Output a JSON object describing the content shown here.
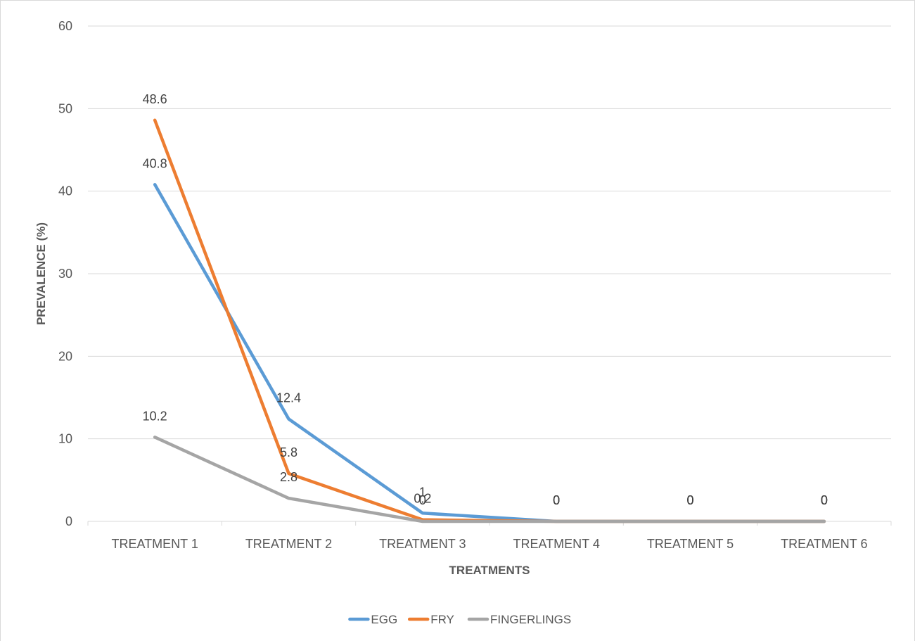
{
  "chart_data": {
    "type": "line",
    "title": "",
    "xlabel": "TREATMENTS",
    "ylabel": "PREVALENCE (%)",
    "ylim": [
      0,
      60
    ],
    "yticks": [
      0,
      10,
      20,
      30,
      40,
      50,
      60
    ],
    "grid": true,
    "legend_position": "bottom",
    "categories": [
      "TREATMENT 1",
      "TREATMENT 2",
      "TREATMENT 3",
      "TREATMENT 4",
      "TREATMENT 5",
      "TREATMENT 6"
    ],
    "series": [
      {
        "name": "EGG",
        "color": "#5b9bd5",
        "values": [
          40.8,
          12.4,
          1,
          0,
          0,
          0
        ]
      },
      {
        "name": "FRY",
        "color": "#ed7d31",
        "values": [
          48.6,
          5.8,
          0.2,
          0,
          0,
          0
        ]
      },
      {
        "name": "FINGERLINGS",
        "color": "#a5a5a5",
        "values": [
          10.2,
          2.8,
          0,
          0,
          0,
          0
        ]
      }
    ]
  }
}
